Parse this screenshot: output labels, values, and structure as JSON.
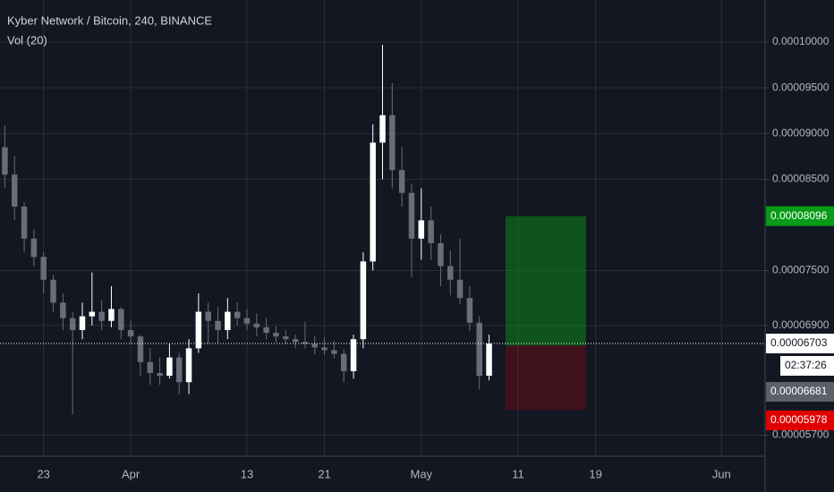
{
  "chart_data": {
    "type": "candlestick",
    "title": "Kyber Network / Bitcoin, 240, BINANCE",
    "subtitle": "Vol (20)",
    "open": [
      8.85e-05,
      8.55e-05,
      8.2e-05,
      7.85e-05,
      7.65e-05,
      7.4e-05,
      7.15e-05,
      6.98e-05,
      6.85e-05,
      7e-05,
      7.05e-05,
      6.95e-05,
      7.08e-05,
      6.85e-05,
      6.78e-05,
      6.5e-05,
      6.38e-05,
      6.35e-05,
      6.55e-05,
      6.28e-05,
      6.65e-05,
      7.05e-05,
      6.95e-05,
      6.85e-05,
      7.05e-05,
      6.98e-05,
      6.92e-05,
      6.88e-05,
      6.82e-05,
      6.78e-05,
      6.75e-05,
      6.72e-05,
      6.7e-05,
      6.66e-05,
      6.63e-05,
      6.59e-05,
      6.4e-05,
      6.75e-05,
      7.6e-05,
      8.9e-05,
      9.2e-05,
      8.6e-05,
      8.35e-05,
      7.85e-05,
      8.05e-05,
      7.8e-05,
      7.55e-05,
      7.4e-05,
      7.2e-05,
      6.93e-05,
      6.35e-05
    ],
    "high": [
      9.09e-05,
      8.75e-05,
      8.25e-05,
      7.95e-05,
      7.7e-05,
      7.45e-05,
      7.25e-05,
      7.05e-05,
      7.15e-05,
      7.48e-05,
      7.18e-05,
      7.33e-05,
      7.1e-05,
      6.95e-05,
      6.8e-05,
      6.65e-05,
      6.55e-05,
      6.7e-05,
      6.6e-05,
      6.75e-05,
      7.25e-05,
      7.15e-05,
      7.1e-05,
      7.2e-05,
      7.15e-05,
      7.08e-05,
      7.03e-05,
      6.98e-05,
      6.89e-05,
      6.85e-05,
      6.8e-05,
      6.94e-05,
      6.78e-05,
      6.77e-05,
      6.73e-05,
      6.64e-05,
      6.8e-05,
      7.7e-05,
      9.1e-05,
      9.97e-05,
      9.55e-05,
      8.85e-05,
      8.45e-05,
      8.4e-05,
      8.2e-05,
      7.9e-05,
      7.72e-05,
      7.85e-05,
      7.33e-05,
      7e-05,
      6.8e-05
    ],
    "low": [
      8.4e-05,
      8.05e-05,
      7.7e-05,
      7.55e-05,
      7.25e-05,
      7.05e-05,
      6.85e-05,
      5.93e-05,
      6.75e-05,
      6.9e-05,
      6.85e-05,
      6.88e-05,
      6.75e-05,
      6.7e-05,
      6.35e-05,
      6.25e-05,
      6.25e-05,
      6.32e-05,
      6.15e-05,
      6.15e-05,
      6.6e-05,
      6.7e-05,
      6.7e-05,
      6.75e-05,
      6.9e-05,
      6.85e-05,
      6.78e-05,
      6.75e-05,
      6.72e-05,
      6.7e-05,
      6.65e-05,
      6.65e-05,
      6.58e-05,
      6.58e-05,
      6.54e-05,
      6.28e-05,
      6.32e-05,
      6.65e-05,
      7.5e-05,
      8.5e-05,
      8.4e-05,
      8.2e-05,
      7.43e-05,
      7.62e-05,
      7.62e-05,
      7.33e-05,
      7.23e-05,
      7.13e-05,
      6.84e-05,
      6.2e-05,
      6.3e-05
    ],
    "close": [
      8.55e-05,
      8.2e-05,
      7.85e-05,
      7.65e-05,
      7.4e-05,
      7.15e-05,
      6.98e-05,
      6.85e-05,
      7e-05,
      7.05e-05,
      6.95e-05,
      7.08e-05,
      6.85e-05,
      6.78e-05,
      6.5e-05,
      6.38e-05,
      6.35e-05,
      6.55e-05,
      6.28e-05,
      6.65e-05,
      7.05e-05,
      6.95e-05,
      6.85e-05,
      7.05e-05,
      6.98e-05,
      6.92e-05,
      6.88e-05,
      6.82e-05,
      6.78e-05,
      6.75e-05,
      6.72e-05,
      6.7e-05,
      6.66e-05,
      6.63e-05,
      6.59e-05,
      6.4e-05,
      6.75e-05,
      7.6e-05,
      8.9e-05,
      9.2e-05,
      8.6e-05,
      8.35e-05,
      7.85e-05,
      8.05e-05,
      7.8e-05,
      7.55e-05,
      7.4e-05,
      7.2e-05,
      6.93e-05,
      6.35e-05,
      6.703e-05
    ],
    "up_color": "#ffffff",
    "down_color": "#6a6d78",
    "xlim": [
      -0.5,
      78.5
    ],
    "xticks": [
      {
        "value": 4,
        "label": "23"
      },
      {
        "value": 13,
        "label": "Apr"
      },
      {
        "value": 25,
        "label": "13"
      },
      {
        "value": 33,
        "label": "21"
      },
      {
        "value": 43,
        "label": "May"
      },
      {
        "value": 53,
        "label": "11"
      },
      {
        "value": 61,
        "label": "19"
      },
      {
        "value": 74,
        "label": "Jun"
      }
    ],
    "ylim": [
      5.47e-05,
      0.0001046
    ],
    "yticks": [
      {
        "value": 0.0001,
        "label": "0.00010000"
      },
      {
        "value": 9.5e-05,
        "label": "0.00009500"
      },
      {
        "value": 9e-05,
        "label": "0.00009000"
      },
      {
        "value": 8.5e-05,
        "label": "0.00008500"
      },
      {
        "value": 7.5e-05,
        "label": "0.00007500"
      },
      {
        "value": 6.9e-05,
        "label": "0.00006900"
      },
      {
        "value": 5.7e-05,
        "label": "0.00005700"
      }
    ],
    "grid": true,
    "last_price": 6.703e-05,
    "countdown": "02:37:26",
    "position": {
      "target": 8.096e-05,
      "entry": 6.681e-05,
      "stop": 5.978e-05,
      "target_color": "#089b17",
      "entry_color": "#5d606b",
      "stop_color": "#e00000"
    }
  }
}
